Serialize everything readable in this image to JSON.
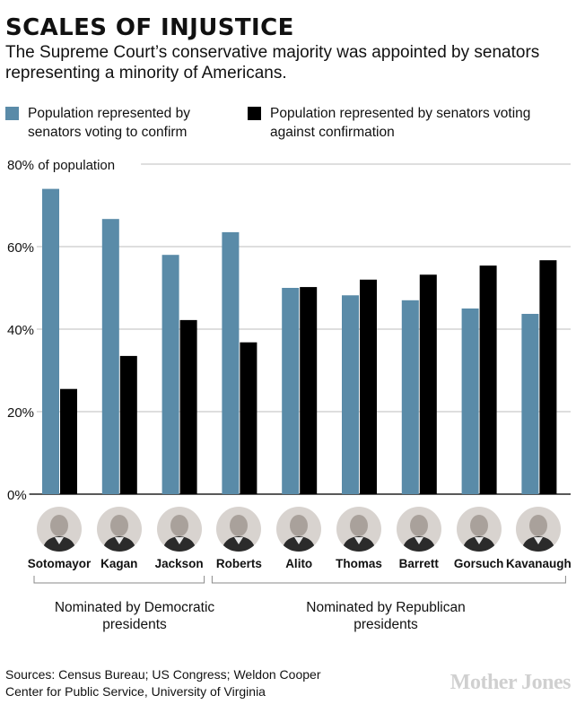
{
  "header": {
    "title": "SCALES OF INJUSTICE",
    "subtitle": "The Supreme Court’s conservative majority was appointed by senators representing a minority of Americans."
  },
  "legend": [
    {
      "label": "Population represented by senators voting to confirm",
      "color": "#5a8ba8"
    },
    {
      "label": "Population represented by senators voting against confirmation",
      "color": "#000000"
    }
  ],
  "groups": [
    {
      "label": "Nominated by Democratic presidents"
    },
    {
      "label": "Nominated by Republican presidents"
    }
  ],
  "footer": {
    "sources": "Sources: Census Bureau; US Congress; Weldon Cooper Center for Public Service, University of Virginia",
    "brand": "Mother Jones"
  },
  "chart_data": {
    "type": "bar",
    "title": "SCALES OF INJUSTICE",
    "ylabel": "",
    "ylim": [
      0,
      80
    ],
    "yticks": [
      "0%",
      "20%",
      "40%",
      "60%",
      "80% of population"
    ],
    "categories": [
      "Sotomayor",
      "Kagan",
      "Jackson",
      "Roberts",
      "Alito",
      "Thomas",
      "Barrett",
      "Gorsuch",
      "Kavanaugh"
    ],
    "series": [
      {
        "name": "Population represented by senators voting to confirm",
        "color": "#5a8ba8",
        "values": [
          74,
          66.7,
          58,
          63.5,
          50,
          48.2,
          47,
          45,
          43.7
        ]
      },
      {
        "name": "Population represented by senators voting against confirmation",
        "color": "#000000",
        "values": [
          25.5,
          33.5,
          42.2,
          36.8,
          50.2,
          52,
          53.2,
          55.4,
          56.7
        ]
      }
    ],
    "grid": true,
    "legend_position": "top"
  }
}
